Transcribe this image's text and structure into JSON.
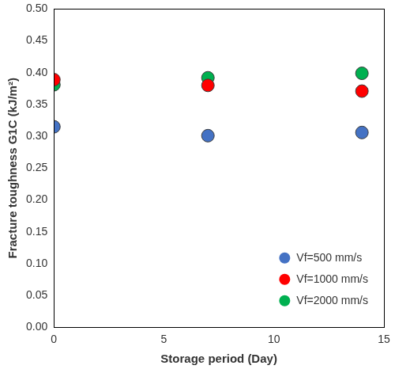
{
  "chart_data": {
    "type": "scatter",
    "x_label": "Storage period (Day)",
    "y_label": "Fracture toughness G1C (kJ/m²)",
    "series": [
      {
        "name": "Vf=500 mm/s",
        "color": "#4472c4",
        "x": [
          0,
          7,
          14
        ],
        "values": [
          0.315,
          0.301,
          0.306
        ]
      },
      {
        "name": "Vf=1000 mm/s",
        "color": "#ff0000",
        "x": [
          0,
          7,
          14
        ],
        "values": [
          0.389,
          0.38,
          0.371
        ]
      },
      {
        "name": "Vf=2000 mm/s",
        "color": "#00b050",
        "x": [
          0,
          7,
          14
        ],
        "values": [
          0.381,
          0.392,
          0.399
        ]
      }
    ],
    "xlim": [
      0,
      15
    ],
    "xticks": [
      0,
      5,
      10,
      15
    ],
    "ylim": [
      0,
      0.5
    ],
    "yticks": [
      {
        "value": 0,
        "label": "0.00"
      },
      {
        "value": 0.05,
        "label": "0.05"
      },
      {
        "value": 0.1,
        "label": "0.10"
      },
      {
        "value": 0.15,
        "label": "0.15"
      },
      {
        "value": 0.2,
        "label": "0.20"
      },
      {
        "value": 0.25,
        "label": "0.25"
      },
      {
        "value": 0.3,
        "label": "0.30"
      },
      {
        "value": 0.35,
        "label": "0.35"
      },
      {
        "value": 0.4,
        "label": "0.40"
      },
      {
        "value": 0.45,
        "label": "0.45"
      },
      {
        "value": 0.5,
        "label": "0.50"
      }
    ],
    "grid": false,
    "legend": "lower right",
    "marker": "circle"
  }
}
